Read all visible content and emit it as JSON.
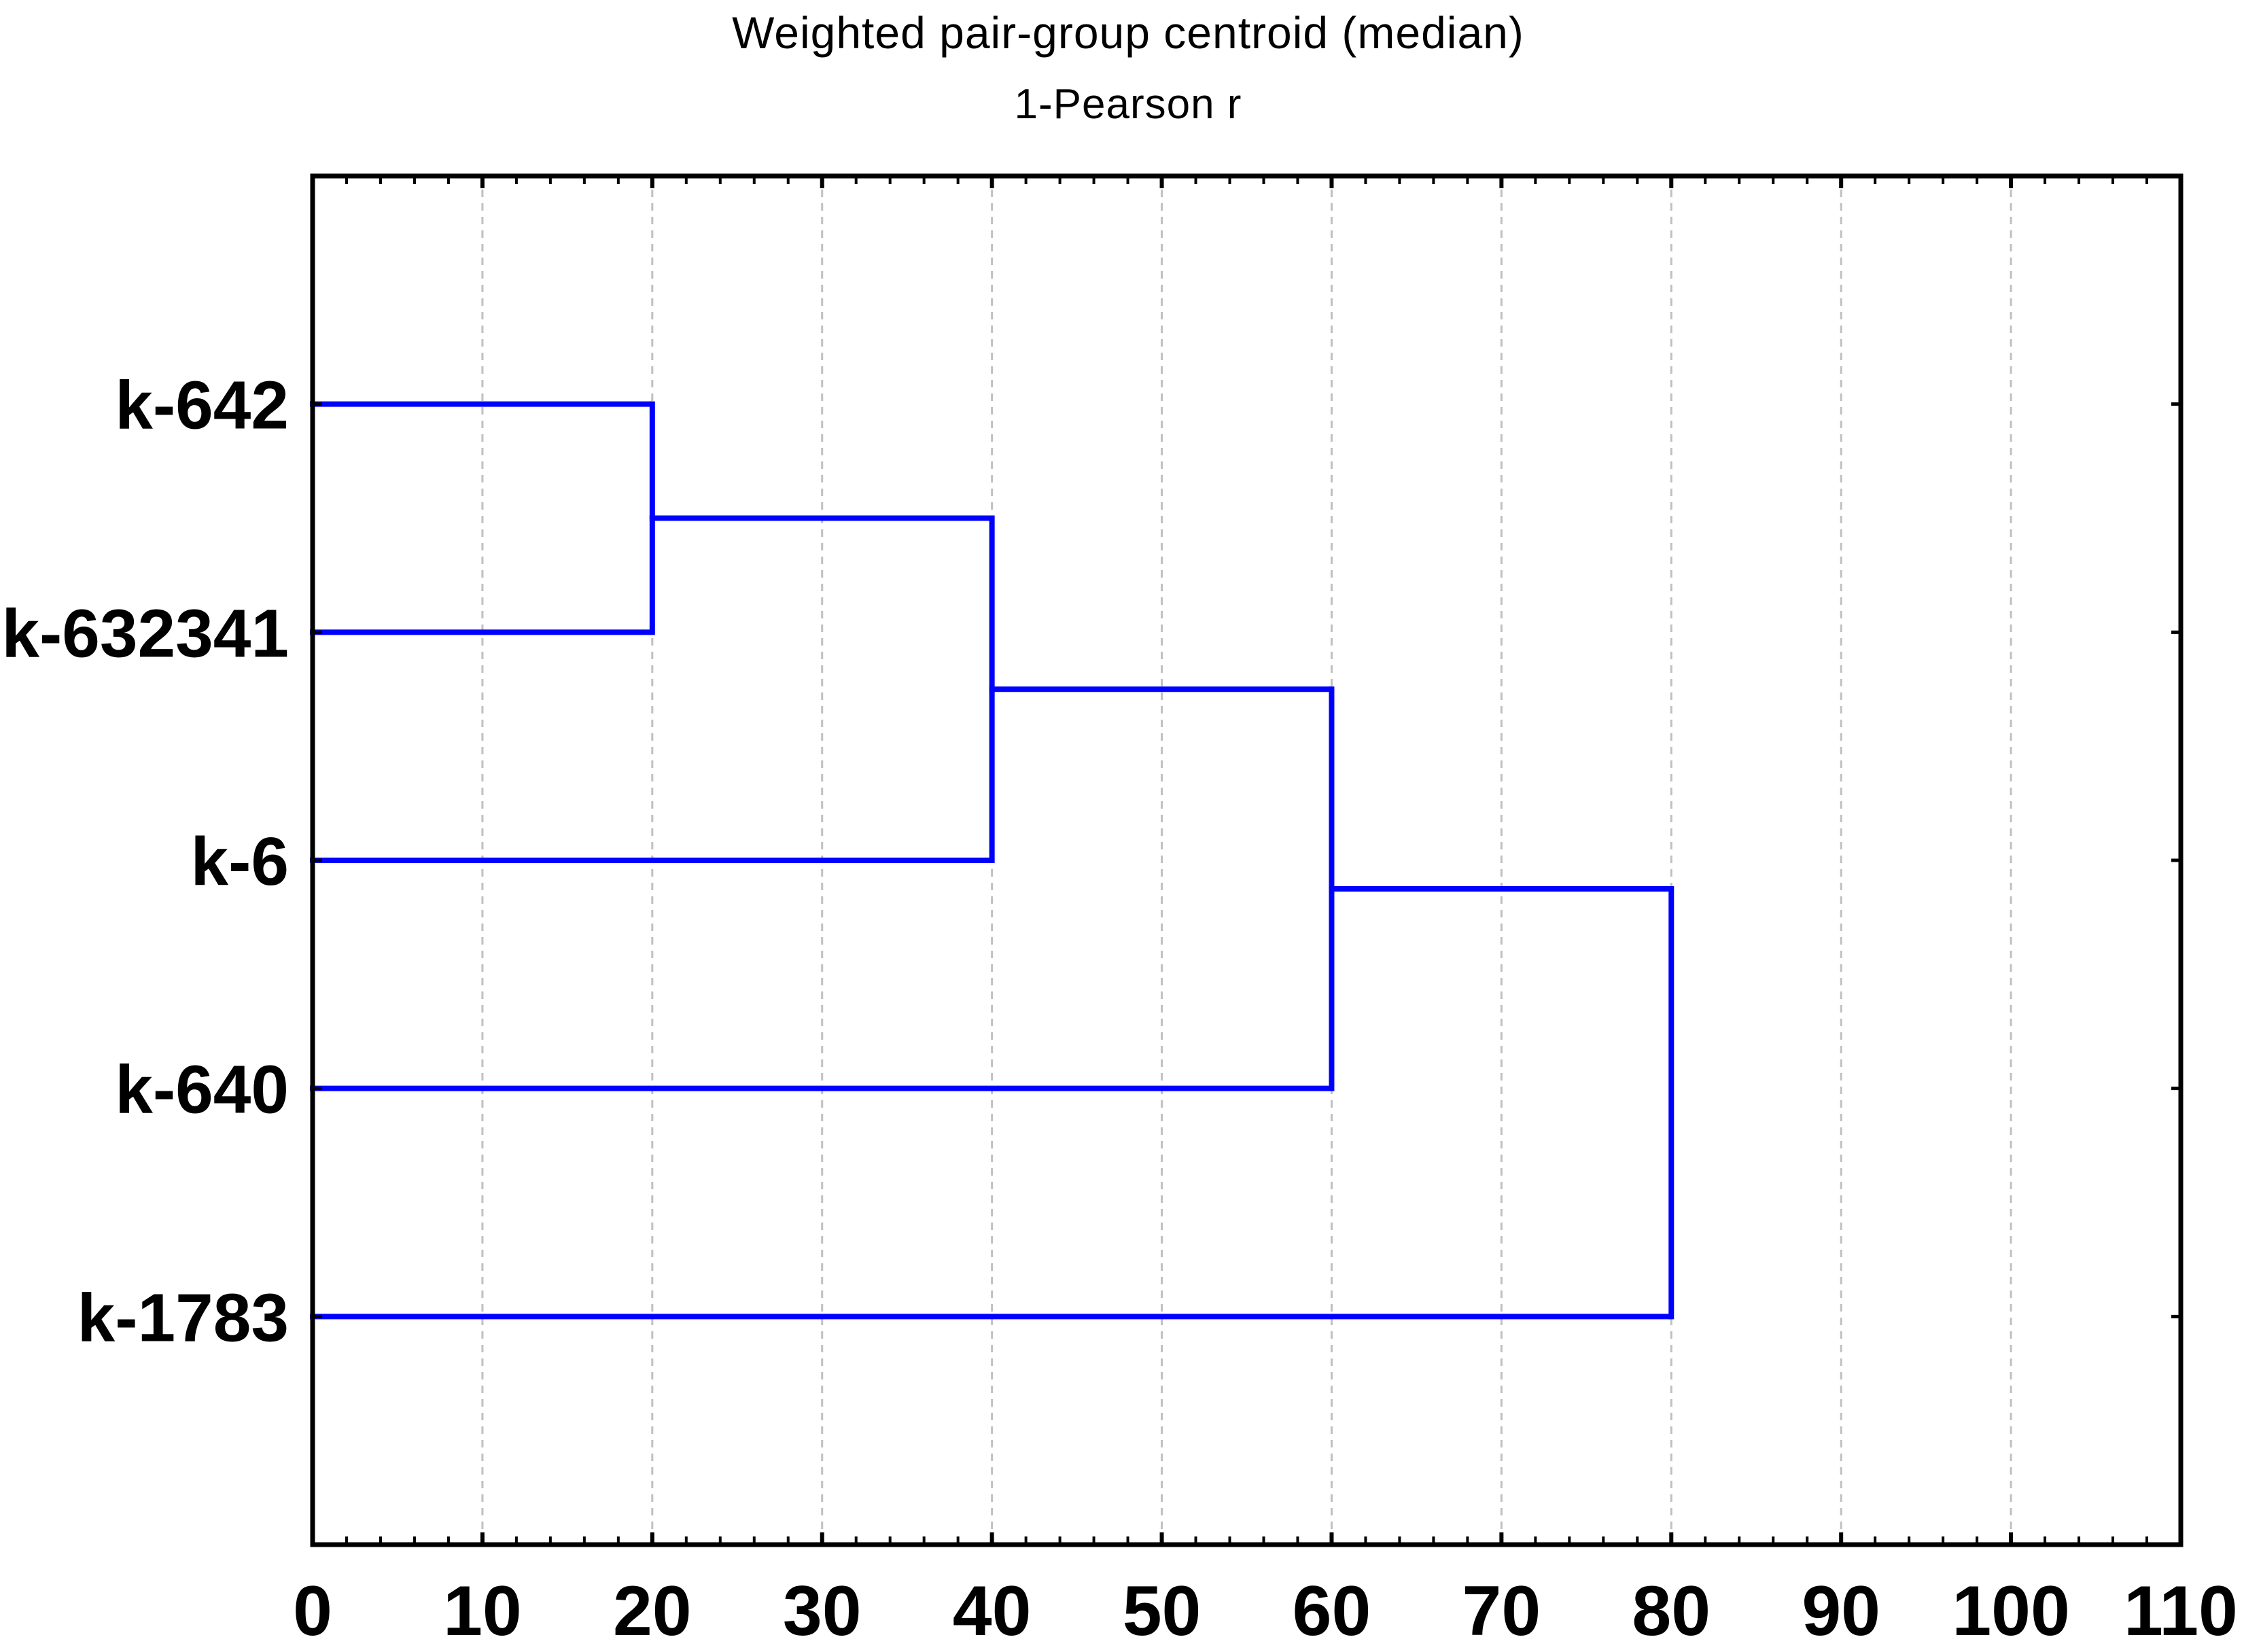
{
  "chart_data": {
    "type": "dendrogram",
    "orientation": "horizontal",
    "title": "Weighted pair-group centroid (median)",
    "subtitle": "1-Pearson r",
    "leaves": [
      "k-642",
      "k-632341",
      "k-6",
      "k-640",
      "k-1783"
    ],
    "linkage": [
      {
        "a": "k-642",
        "b": "k-632341",
        "distance": 20,
        "node": "merge1"
      },
      {
        "a": "merge1",
        "b": "k-6",
        "distance": 40,
        "node": "merge2"
      },
      {
        "a": "merge2",
        "b": "k-640",
        "distance": 60,
        "node": "merge3"
      },
      {
        "a": "merge3",
        "b": "k-1783",
        "distance": 80,
        "node": "merge4"
      }
    ],
    "xlim": [
      0,
      110
    ],
    "x_tick_labels": [
      "0",
      "10",
      "20",
      "30",
      "40",
      "50",
      "60",
      "70",
      "80",
      "90",
      "100",
      "110"
    ],
    "x_major_tick_step": 10,
    "x_minor_tick_step": 2,
    "gridlines_at": [
      10,
      20,
      30,
      40,
      50,
      60,
      70,
      80,
      90,
      100
    ],
    "grid_style": "dashed-vertical",
    "colors": {
      "link": "#0000ff",
      "frame": "#000000",
      "grid": "#c0c0c0",
      "text": "#000000",
      "background": "#ffffff"
    }
  }
}
